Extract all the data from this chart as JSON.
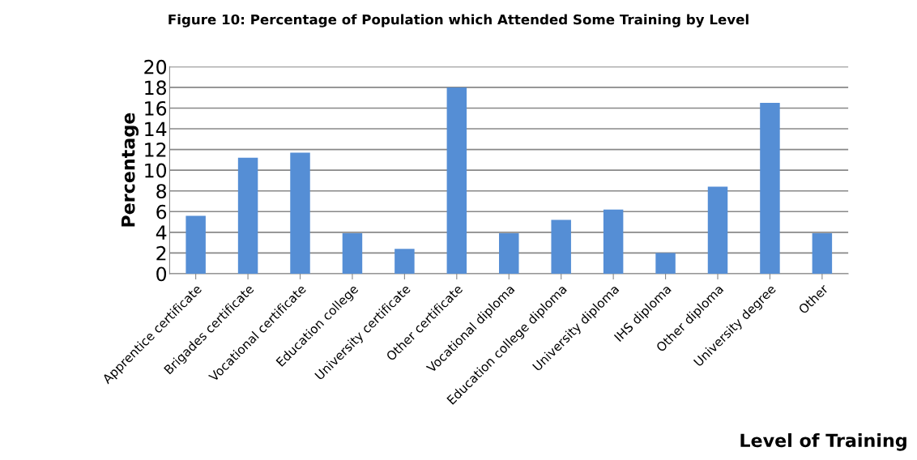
{
  "chart_data": {
    "type": "bar",
    "title": "Figure 10: Percentage of Population which Attended Some Training by Level",
    "xlabel": "Level of Training",
    "ylabel": "Percentage",
    "categories": [
      "Apprentice certificate",
      "Brigades certificate",
      "Vocational certificate",
      "Education college",
      "University certificate",
      "Other certificate",
      "Vocational diploma",
      "Education college diploma",
      "University diploma",
      "IHS diploma",
      "Other diploma",
      "University degree",
      "Other"
    ],
    "values": [
      5.6,
      11.2,
      11.7,
      3.9,
      2.4,
      18,
      3.9,
      5.2,
      6.2,
      2.0,
      8.4,
      16.5,
      3.9
    ],
    "color": "#558ed5",
    "ylim": [
      0,
      20
    ],
    "yticks": [
      0,
      2,
      4,
      6,
      8,
      10,
      12,
      14,
      16,
      18,
      20
    ],
    "grid": "y",
    "legend": false
  }
}
